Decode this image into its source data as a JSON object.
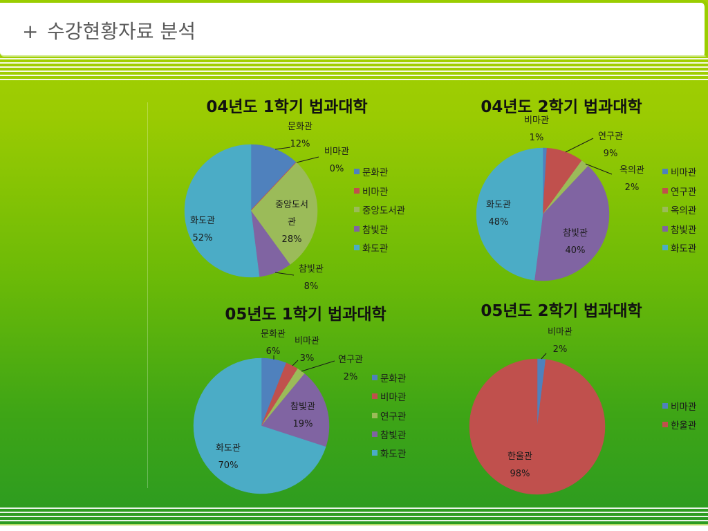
{
  "header": {
    "bullet": "+",
    "title": "수강현황자료 분석"
  },
  "theme": {
    "background_top": "#a8d300",
    "background_bottom": "#2a9a22",
    "accent": "#9acd00"
  },
  "chart_data": [
    {
      "type": "pie",
      "title": "04년도 1학기 법과대학",
      "categories": [
        "문화관",
        "비마관",
        "중앙도서관",
        "참빛관",
        "화도관"
      ],
      "values": [
        12,
        0,
        28,
        8,
        52
      ],
      "unit": "%",
      "colors": [
        "#4F81BD",
        "#C0504D",
        "#9BBB59",
        "#8064A2",
        "#4BACC6"
      ],
      "legend": "right"
    },
    {
      "type": "pie",
      "title": "04년도 2학기 법과대학",
      "categories": [
        "비마관",
        "연구관",
        "옥의관",
        "참빛관",
        "화도관"
      ],
      "values": [
        1,
        9,
        2,
        40,
        48
      ],
      "unit": "%",
      "colors": [
        "#4F81BD",
        "#C0504D",
        "#9BBB59",
        "#8064A2",
        "#4BACC6"
      ],
      "legend": "right"
    },
    {
      "type": "pie",
      "title": "05년도 1학기 법과대학",
      "categories": [
        "문화관",
        "비마관",
        "연구관",
        "참빛관",
        "화도관"
      ],
      "values": [
        6,
        3,
        2,
        19,
        70
      ],
      "unit": "%",
      "colors": [
        "#4F81BD",
        "#C0504D",
        "#9BBB59",
        "#8064A2",
        "#4BACC6"
      ],
      "legend": "right"
    },
    {
      "type": "pie",
      "title": "05년도 2학기 법과대학",
      "categories": [
        "비마관",
        "한울관"
      ],
      "values": [
        2,
        98
      ],
      "unit": "%",
      "colors": [
        "#4F81BD",
        "#C0504D"
      ],
      "legend": "right"
    }
  ]
}
